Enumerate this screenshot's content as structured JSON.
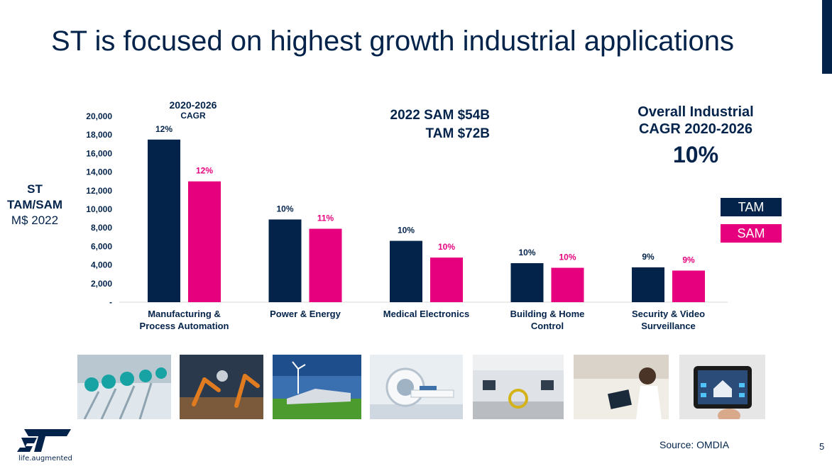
{
  "title": "ST is focused on highest growth industrial applications",
  "ylabel": {
    "line1": "ST",
    "line2": "TAM/SAM",
    "line3": "M$ 2022"
  },
  "cagr_header": {
    "line1": "2020-2026",
    "line2": "CAGR"
  },
  "sam_tam": {
    "line1": "2022 SAM $54B",
    "line2": "TAM $72B"
  },
  "overall": {
    "line1": "Overall Industrial",
    "line2": "CAGR 2020-2026",
    "value": "10%"
  },
  "legend": {
    "tam": "TAM",
    "sam": "SAM"
  },
  "colors": {
    "tam": "#03234b",
    "sam": "#e6007e",
    "text": "#03234b"
  },
  "source": "Source: OMDIA",
  "page_number": "5",
  "logo": {
    "tagline": "life.augmented"
  },
  "photos": [
    {
      "name": "photo-manufacturing-pumps-icon"
    },
    {
      "name": "photo-robot-arms-icon"
    },
    {
      "name": "photo-wind-solar-icon"
    },
    {
      "name": "photo-mri-scanner-icon"
    },
    {
      "name": "photo-building-interior-icon"
    },
    {
      "name": "photo-smart-home-tablet-icon"
    },
    {
      "name": "photo-home-control-panel-icon"
    }
  ],
  "chart_data": {
    "type": "bar",
    "categories": [
      [
        "Manufacturing &",
        "Process Automation"
      ],
      [
        "Power & Energy"
      ],
      [
        "Medical Electronics"
      ],
      [
        "Building & Home",
        "Control"
      ],
      [
        "Security & Video",
        "Surveillance"
      ]
    ],
    "series": [
      {
        "name": "TAM",
        "values": [
          17500,
          8900,
          6600,
          4200,
          3750
        ],
        "labels": [
          "12%",
          "10%",
          "10%",
          "10%",
          "9%"
        ]
      },
      {
        "name": "SAM",
        "values": [
          13000,
          7900,
          4800,
          3700,
          3400
        ],
        "labels": [
          "12%",
          "11%",
          "10%",
          "10%",
          "9%"
        ]
      }
    ],
    "yticks": [
      "-",
      "2,000",
      "4,000",
      "6,000",
      "8,000",
      "10,000",
      "12,000",
      "14,000",
      "16,000",
      "18,000",
      "20,000"
    ],
    "ylim": [
      0,
      20000
    ],
    "grid": false
  }
}
